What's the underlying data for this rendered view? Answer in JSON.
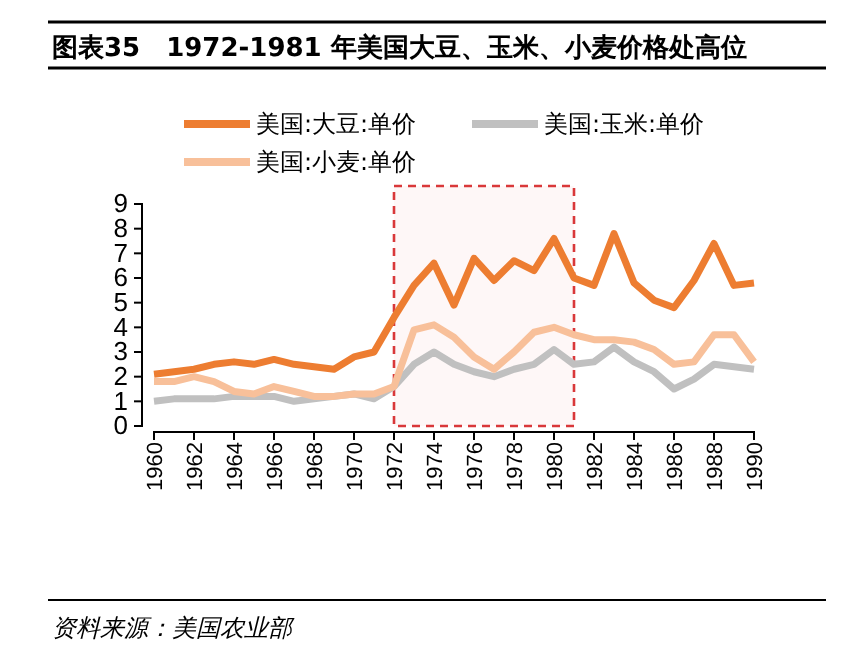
{
  "chart_data": {
    "type": "line",
    "title": "图表35　1972-1981 年美国大豆、玉米、小麦价格处高位",
    "x": [
      1960,
      1961,
      1962,
      1963,
      1964,
      1965,
      1966,
      1967,
      1968,
      1969,
      1970,
      1971,
      1972,
      1973,
      1974,
      1975,
      1976,
      1977,
      1978,
      1979,
      1980,
      1981,
      1982,
      1983,
      1984,
      1985,
      1986,
      1987,
      1988,
      1989,
      1990
    ],
    "series": [
      {
        "name": "美国:大豆:单价",
        "color": "#ed7d31",
        "values": [
          2.1,
          2.2,
          2.3,
          2.5,
          2.6,
          2.5,
          2.7,
          2.5,
          2.4,
          2.3,
          2.8,
          3.0,
          4.4,
          5.7,
          6.6,
          4.9,
          6.8,
          5.9,
          6.7,
          6.3,
          7.6,
          6.0,
          5.7,
          7.8,
          5.8,
          5.1,
          4.8,
          5.9,
          7.4,
          5.7,
          5.8
        ]
      },
      {
        "name": "美国:玉米:单价",
        "color": "#c0c0c0",
        "values": [
          1.0,
          1.1,
          1.1,
          1.1,
          1.2,
          1.2,
          1.2,
          1.0,
          1.1,
          1.2,
          1.3,
          1.1,
          1.6,
          2.5,
          3.0,
          2.5,
          2.2,
          2.0,
          2.3,
          2.5,
          3.1,
          2.5,
          2.6,
          3.2,
          2.6,
          2.2,
          1.5,
          1.9,
          2.5,
          2.4,
          2.3
        ]
      },
      {
        "name": "美国:小麦:单价",
        "color": "#f8c09a",
        "values": [
          1.8,
          1.8,
          2.0,
          1.8,
          1.4,
          1.3,
          1.6,
          1.4,
          1.2,
          1.2,
          1.3,
          1.3,
          1.6,
          3.9,
          4.1,
          3.6,
          2.8,
          2.3,
          3.0,
          3.8,
          4.0,
          3.7,
          3.5,
          3.5,
          3.4,
          3.1,
          2.5,
          2.6,
          3.7,
          3.7,
          2.6
        ]
      }
    ],
    "xlim": [
      1960,
      1990
    ],
    "xticks": [
      1960,
      1962,
      1964,
      1966,
      1968,
      1970,
      1972,
      1974,
      1976,
      1978,
      1980,
      1982,
      1984,
      1986,
      1988,
      1990
    ],
    "ylim": [
      0,
      9
    ],
    "yticks": [
      0,
      1,
      2,
      3,
      4,
      5,
      6,
      7,
      8,
      9
    ],
    "bands": [
      {
        "axis": "x",
        "from": 1972,
        "to": 1981,
        "color": "#d9383a"
      }
    ],
    "legend": "top",
    "grid": false,
    "line_style": "solid",
    "marker": "none",
    "annotations": [
      "资料来源：美国农业部"
    ]
  }
}
